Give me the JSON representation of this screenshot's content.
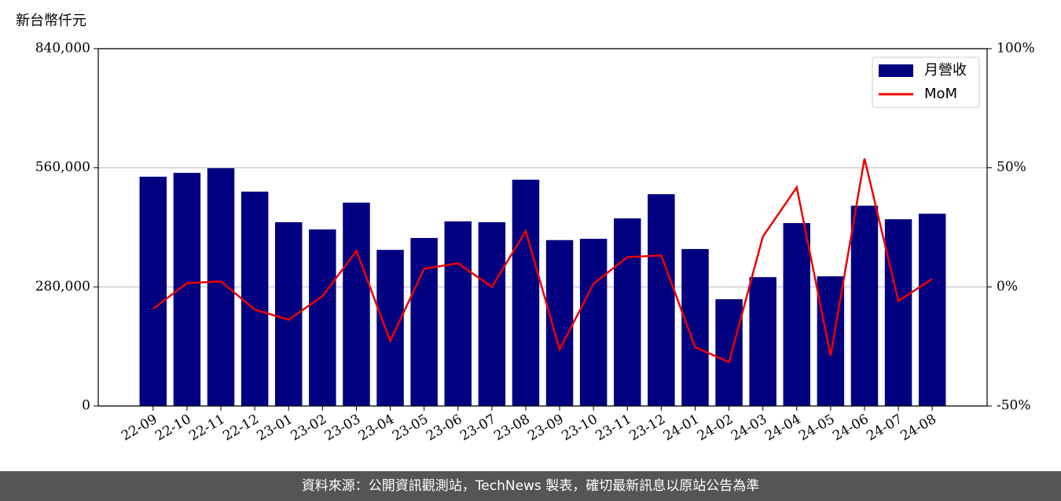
{
  "chart_data": {
    "type": "bar_line",
    "y_label": "新台幣仟元",
    "footer": "資料來源：公開資訊觀測站，TechNews 製表，確切最新訊息以原站公告為準",
    "categories": [
      "22-09",
      "22-10",
      "22-11",
      "22-12",
      "23-01",
      "23-02",
      "23-03",
      "23-04",
      "23-05",
      "23-06",
      "23-07",
      "23-08",
      "23-09",
      "23-10",
      "23-11",
      "23-12",
      "24-01",
      "24-02",
      "24-03",
      "24-04",
      "24-05",
      "24-06",
      "24-07",
      "24-08"
    ],
    "series": [
      {
        "name": "月營收",
        "type": "bar",
        "color": "#000080",
        "axis": "y",
        "values": [
          539000,
          548000,
          559000,
          504000,
          432000,
          415000,
          478000,
          367000,
          395000,
          434000,
          432000,
          532000,
          390000,
          393000,
          441000,
          498000,
          369000,
          251000,
          303000,
          430000,
          305000,
          471000,
          439000,
          452000
        ]
      },
      {
        "name": "MoM",
        "type": "line",
        "color": "#ee0000",
        "axis": "y2",
        "values": [
          -9.2,
          1.6,
          2.3,
          -9.5,
          -13.8,
          -3.9,
          15.1,
          -22.7,
          7.6,
          9.9,
          0,
          23.4,
          -26.3,
          1.3,
          12.5,
          13.2,
          -25.3,
          -31.6,
          21.1,
          41.8,
          -28.9,
          53.9,
          -5.9,
          3.3
        ]
      }
    ],
    "ylim": [
      0,
      840000
    ],
    "yticks": [
      0,
      {
        "value": 280000,
        "label": "280,000"
      },
      {
        "value": 560000,
        "label": "560,000"
      },
      {
        "value": 840000,
        "label": "840,000"
      }
    ],
    "y2lim": [
      -50,
      100
    ],
    "y2ticks": [
      {
        "value": -50,
        "label": "-50%"
      },
      {
        "value": 0,
        "label": "0%"
      },
      {
        "value": 50,
        "label": "50%"
      },
      {
        "value": 100,
        "label": "100%"
      }
    ],
    "grid": true,
    "legend": "upper right"
  }
}
